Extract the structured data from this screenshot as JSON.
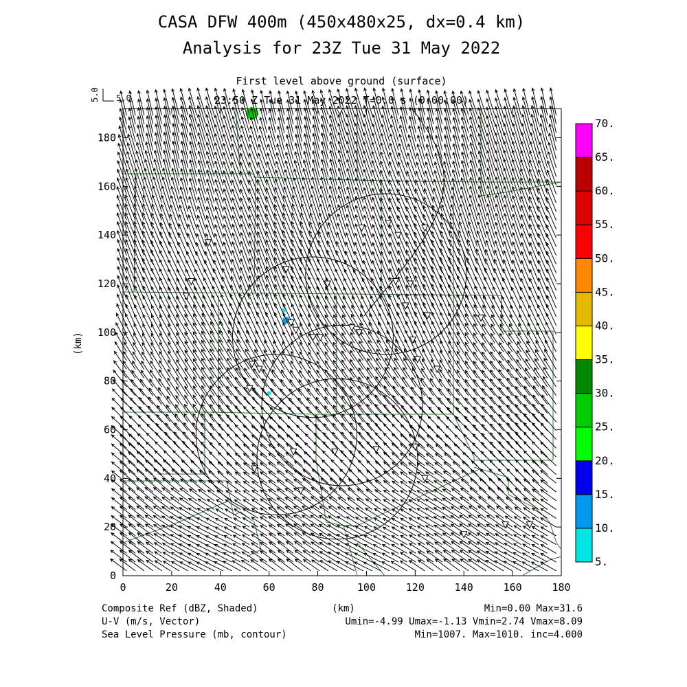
{
  "chart_data": {
    "type": "vector-field",
    "title": "CASA DFW 400m (450x480x25, dx=0.4 km)",
    "subtitle": "Analysis for 23Z Tue 31 May 2022",
    "level_label": "First level above ground (surface)",
    "time_label": "23:50 Z Tue 31 May 2022    T=0.0 s (0:00:00)",
    "vector_scale": {
      "ylabel": "5.0",
      "xlabel": "5.0"
    },
    "xlabel": "(km)",
    "ylabel": "(km)",
    "xlim": [
      0,
      180
    ],
    "ylim": [
      0,
      192
    ],
    "x_ticks": [
      "0",
      "20",
      "40",
      "60",
      "80",
      "100",
      "120",
      "140",
      "160",
      "180"
    ],
    "y_ticks": [
      "0",
      "20",
      "40",
      "60",
      "80",
      "100",
      "120",
      "140",
      "160",
      "180"
    ],
    "colorbar": {
      "levels": [
        "5.",
        "10.",
        "15.",
        "20.",
        "25.",
        "30.",
        "35.",
        "40.",
        "45.",
        "50.",
        "55.",
        "60.",
        "65.",
        "70."
      ],
      "colors": [
        "#00e5e5",
        "#0099ee",
        "#0000ee",
        "#00ff00",
        "#00cc00",
        "#008800",
        "#ffff00",
        "#e6b800",
        "#ff8800",
        "#ff0000",
        "#dd0000",
        "#bb0000",
        "#ff00ff"
      ]
    },
    "wind": {
      "u_min": -4.99,
      "u_max": -1.13,
      "v_min": 2.74,
      "v_max": 8.09,
      "regions": [
        {
          "name": "north",
          "u": -2.0,
          "v": 7.5
        },
        {
          "name": "center",
          "u": -3.0,
          "v": 6.5
        },
        {
          "name": "south",
          "u": -4.8,
          "v": 3.0
        }
      ]
    },
    "radar_rings": [
      {
        "x": 108,
        "y": 124,
        "r": 33
      },
      {
        "x": 78,
        "y": 98,
        "r": 33
      },
      {
        "x": 90,
        "y": 70,
        "r": 33
      },
      {
        "x": 63,
        "y": 58,
        "r": 33
      },
      {
        "x": 88,
        "y": 48,
        "r": 33
      }
    ],
    "sites": [
      [
        89,
        191
      ],
      [
        67,
        126
      ],
      [
        84,
        120
      ],
      [
        98,
        143
      ],
      [
        109,
        145
      ],
      [
        113,
        140
      ],
      [
        124,
        143
      ],
      [
        112,
        121
      ],
      [
        118,
        120
      ],
      [
        116,
        111
      ],
      [
        125,
        107
      ],
      [
        69,
        104
      ],
      [
        71,
        101
      ],
      [
        81,
        98
      ],
      [
        78,
        98
      ],
      [
        94,
        102
      ],
      [
        97,
        100
      ],
      [
        119,
        97
      ],
      [
        121,
        89
      ],
      [
        129,
        85
      ],
      [
        147,
        106
      ],
      [
        53,
        87
      ],
      [
        56,
        85
      ],
      [
        52,
        77
      ],
      [
        70,
        51
      ],
      [
        87,
        51
      ],
      [
        104,
        52
      ],
      [
        120,
        53
      ],
      [
        54,
        44
      ],
      [
        73,
        35
      ],
      [
        124,
        40
      ],
      [
        26,
        115
      ],
      [
        35,
        137
      ],
      [
        28,
        121
      ],
      [
        167,
        21
      ],
      [
        157,
        21
      ],
      [
        140,
        17
      ]
    ],
    "echoes": [
      {
        "x": 53,
        "y": 190,
        "dbz": 28
      },
      {
        "x": 67,
        "y": 105,
        "dbz": 13
      },
      {
        "x": 66,
        "y": 109,
        "dbz": 8
      },
      {
        "x": 60,
        "y": 75,
        "dbz": 6
      }
    ],
    "footer": {
      "left": [
        "Composite Ref (dBZ, Shaded)",
        "U-V (m/s, Vector)",
        "Sea Level Pressure (mb, contour)"
      ],
      "center": "(km)",
      "right": [
        "Min=0.00 Max=31.6",
        "Umin=-4.99 Umax=-1.13 Vmin=2.74 Vmax=8.09",
        "Min=1007. Max=1010. inc=4.000"
      ]
    }
  }
}
